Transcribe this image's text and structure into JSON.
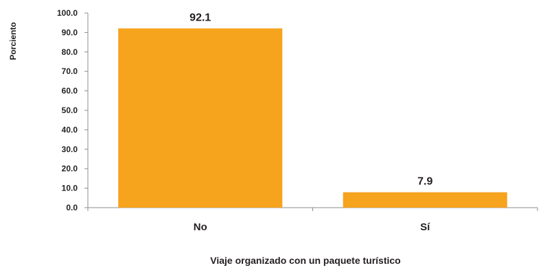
{
  "chart_data": {
    "type": "bar",
    "categories": [
      "No",
      "Sí"
    ],
    "values": [
      92.1,
      7.9
    ],
    "data_labels": [
      "92.1",
      "7.9"
    ],
    "xlabel": "Viaje organizado con un paquete turístico",
    "ylabel": "Porciento",
    "ylim": [
      0,
      100
    ],
    "yticks": [
      "0.0",
      "10.0",
      "20.0",
      "30.0",
      "40.0",
      "50.0",
      "60.0",
      "70.0",
      "80.0",
      "90.0",
      "100.0"
    ],
    "grid": false,
    "legend": "none",
    "bar_color": "#f6a31e",
    "axis_color": "#8c8c8c",
    "text_color": "#231f20"
  }
}
